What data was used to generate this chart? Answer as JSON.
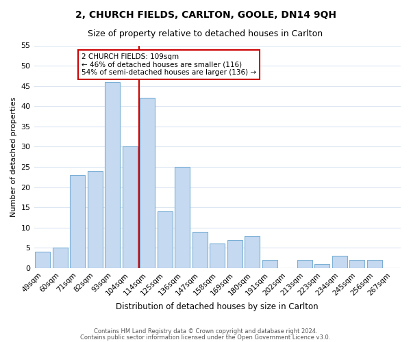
{
  "title": "2, CHURCH FIELDS, CARLTON, GOOLE, DN14 9QH",
  "subtitle": "Size of property relative to detached houses in Carlton",
  "xlabel": "Distribution of detached houses by size in Carlton",
  "ylabel": "Number of detached properties",
  "bar_color": "#c5d9f1",
  "bar_edge_color": "#7bafd4",
  "categories": [
    "49sqm",
    "60sqm",
    "71sqm",
    "82sqm",
    "93sqm",
    "104sqm",
    "114sqm",
    "125sqm",
    "136sqm",
    "147sqm",
    "158sqm",
    "169sqm",
    "180sqm",
    "191sqm",
    "202sqm",
    "213sqm",
    "223sqm",
    "234sqm",
    "245sqm",
    "256sqm",
    "267sqm"
  ],
  "values": [
    4,
    5,
    23,
    24,
    46,
    30,
    42,
    14,
    25,
    9,
    6,
    7,
    8,
    2,
    0,
    2,
    1,
    3,
    2,
    2,
    0
  ],
  "ylim": [
    0,
    55
  ],
  "yticks": [
    0,
    5,
    10,
    15,
    20,
    25,
    30,
    35,
    40,
    45,
    50,
    55
  ],
  "vline_pos": 5.5,
  "annotation_title": "2 CHURCH FIELDS: 109sqm",
  "annotation_line1": "← 46% of detached houses are smaller (116)",
  "annotation_line2": "54% of semi-detached houses are larger (136) →",
  "footer1": "Contains HM Land Registry data © Crown copyright and database right 2024.",
  "footer2": "Contains public sector information licensed under the Open Government Licence v3.0.",
  "box_color": "#cc0000",
  "grid_color": "#dce6f1"
}
